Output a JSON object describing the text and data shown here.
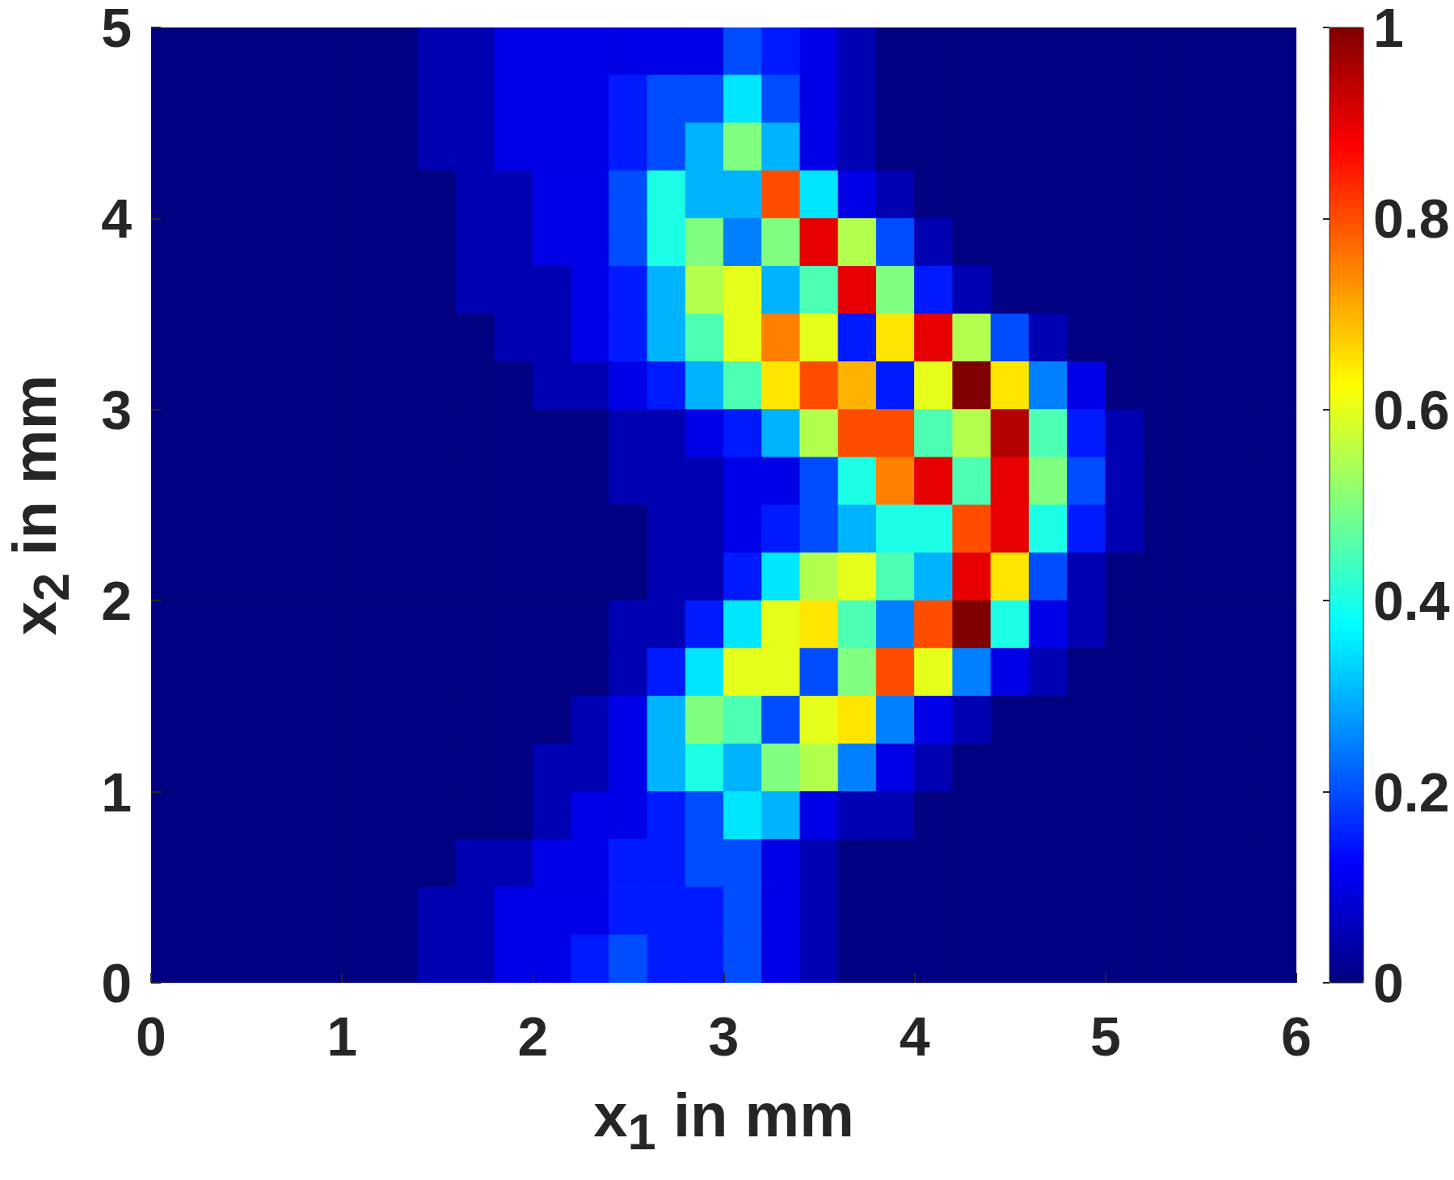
{
  "chart_data": {
    "type": "heatmap",
    "xlabel": "x$_{1}$ in mm",
    "ylabel": "x$_{2}$ in mm",
    "x": [
      0.1,
      0.3,
      0.5,
      0.7,
      0.9,
      1.1,
      1.3,
      1.5,
      1.7,
      1.9,
      2.1,
      2.3,
      2.5,
      2.7,
      2.9,
      3.1,
      3.3,
      3.5,
      3.7,
      3.9,
      4.1,
      4.3,
      4.5,
      4.7,
      4.9,
      5.1,
      5.3,
      5.5,
      5.7,
      5.9
    ],
    "y": [
      4.875,
      4.625,
      4.375,
      4.125,
      3.875,
      3.625,
      3.375,
      3.125,
      2.875,
      2.625,
      2.375,
      2.125,
      1.875,
      1.625,
      1.375,
      1.125,
      0.875,
      0.625,
      0.375,
      0.125
    ],
    "cells": [
      [
        0,
        0,
        0,
        0,
        0,
        0,
        0,
        0.05,
        0.05,
        0.1,
        0.1,
        0.1,
        0.1,
        0.1,
        0.1,
        0.2,
        0.15,
        0.1,
        0.05,
        0,
        0,
        0,
        0,
        0,
        0,
        0,
        0,
        0,
        0,
        0
      ],
      [
        0,
        0,
        0,
        0,
        0,
        0,
        0,
        0.05,
        0.05,
        0.1,
        0.1,
        0.1,
        0.15,
        0.2,
        0.2,
        0.35,
        0.2,
        0.1,
        0.05,
        0,
        0,
        0,
        0,
        0,
        0,
        0,
        0,
        0,
        0,
        0
      ],
      [
        0,
        0,
        0,
        0,
        0,
        0,
        0,
        0.05,
        0.05,
        0.1,
        0.1,
        0.1,
        0.15,
        0.2,
        0.3,
        0.5,
        0.3,
        0.1,
        0.05,
        0,
        0,
        0,
        0,
        0,
        0,
        0,
        0,
        0,
        0,
        0
      ],
      [
        0,
        0,
        0,
        0,
        0,
        0,
        0,
        0,
        0.05,
        0.05,
        0.1,
        0.1,
        0.2,
        0.4,
        0.3,
        0.3,
        0.8,
        0.35,
        0.1,
        0.05,
        0,
        0,
        0,
        0,
        0,
        0,
        0,
        0,
        0,
        0
      ],
      [
        0,
        0,
        0,
        0,
        0,
        0,
        0,
        0,
        0.05,
        0.05,
        0.1,
        0.1,
        0.2,
        0.4,
        0.5,
        0.25,
        0.5,
        0.9,
        0.55,
        0.2,
        0.05,
        0,
        0,
        0,
        0,
        0,
        0,
        0,
        0,
        0
      ],
      [
        0,
        0,
        0,
        0,
        0,
        0,
        0,
        0,
        0.05,
        0.05,
        0.05,
        0.1,
        0.15,
        0.3,
        0.55,
        0.6,
        0.3,
        0.45,
        0.9,
        0.5,
        0.15,
        0.05,
        0,
        0,
        0,
        0,
        0,
        0,
        0,
        0
      ],
      [
        0,
        0,
        0,
        0,
        0,
        0,
        0,
        0,
        0,
        0.05,
        0.05,
        0.1,
        0.15,
        0.3,
        0.45,
        0.6,
        0.75,
        0.6,
        0.15,
        0.65,
        0.9,
        0.55,
        0.2,
        0.05,
        0,
        0,
        0,
        0,
        0,
        0
      ],
      [
        0,
        0,
        0,
        0,
        0,
        0,
        0,
        0,
        0,
        0,
        0.05,
        0.05,
        0.1,
        0.15,
        0.3,
        0.45,
        0.65,
        0.8,
        0.7,
        0.15,
        0.6,
        1,
        0.65,
        0.25,
        0.1,
        0,
        0,
        0,
        0,
        0
      ],
      [
        0,
        0,
        0,
        0,
        0,
        0,
        0,
        0,
        0,
        0,
        0,
        0,
        0.05,
        0.05,
        0.1,
        0.15,
        0.3,
        0.55,
        0.8,
        0.8,
        0.45,
        0.55,
        0.95,
        0.45,
        0.15,
        0.05,
        0,
        0,
        0,
        0
      ],
      [
        0,
        0,
        0,
        0,
        0,
        0,
        0,
        0,
        0,
        0,
        0,
        0,
        0.05,
        0.05,
        0.05,
        0.1,
        0.1,
        0.2,
        0.4,
        0.75,
        0.9,
        0.45,
        0.9,
        0.5,
        0.2,
        0.05,
        0,
        0,
        0,
        0
      ],
      [
        0,
        0,
        0,
        0,
        0,
        0,
        0,
        0,
        0,
        0,
        0,
        0,
        0,
        0.05,
        0.05,
        0.1,
        0.15,
        0.2,
        0.3,
        0.4,
        0.4,
        0.8,
        0.9,
        0.4,
        0.15,
        0.05,
        0,
        0,
        0,
        0
      ],
      [
        0,
        0,
        0,
        0,
        0,
        0,
        0,
        0,
        0,
        0,
        0,
        0,
        0,
        0.05,
        0.05,
        0.15,
        0.35,
        0.55,
        0.6,
        0.45,
        0.3,
        0.9,
        0.65,
        0.2,
        0.05,
        0,
        0,
        0,
        0,
        0
      ],
      [
        0,
        0,
        0,
        0,
        0,
        0,
        0,
        0,
        0,
        0,
        0,
        0,
        0.05,
        0.05,
        0.15,
        0.35,
        0.6,
        0.65,
        0.45,
        0.25,
        0.8,
        1,
        0.4,
        0.1,
        0.05,
        0,
        0,
        0,
        0,
        0
      ],
      [
        0,
        0,
        0,
        0,
        0,
        0,
        0,
        0,
        0,
        0,
        0,
        0,
        0.05,
        0.15,
        0.35,
        0.6,
        0.6,
        0.2,
        0.5,
        0.8,
        0.6,
        0.25,
        0.1,
        0.05,
        0,
        0,
        0,
        0,
        0,
        0
      ],
      [
        0,
        0,
        0,
        0,
        0,
        0,
        0,
        0,
        0,
        0,
        0,
        0.05,
        0.1,
        0.3,
        0.5,
        0.45,
        0.2,
        0.6,
        0.65,
        0.25,
        0.1,
        0.05,
        0,
        0,
        0,
        0,
        0,
        0,
        0,
        0
      ],
      [
        0,
        0,
        0,
        0,
        0,
        0,
        0,
        0,
        0,
        0,
        0.05,
        0.05,
        0.1,
        0.3,
        0.4,
        0.3,
        0.5,
        0.55,
        0.25,
        0.1,
        0.05,
        0,
        0,
        0,
        0,
        0,
        0,
        0,
        0,
        0
      ],
      [
        0,
        0,
        0,
        0,
        0,
        0,
        0,
        0,
        0,
        0,
        0.05,
        0.1,
        0.1,
        0.15,
        0.2,
        0.35,
        0.3,
        0.1,
        0.05,
        0.05,
        0,
        0,
        0,
        0,
        0,
        0,
        0,
        0,
        0,
        0
      ],
      [
        0,
        0,
        0,
        0,
        0,
        0,
        0,
        0,
        0.05,
        0.05,
        0.1,
        0.1,
        0.15,
        0.15,
        0.2,
        0.2,
        0.1,
        0.05,
        0,
        0,
        0,
        0,
        0,
        0,
        0,
        0,
        0,
        0,
        0,
        0
      ],
      [
        0,
        0,
        0,
        0,
        0,
        0,
        0,
        0.05,
        0.05,
        0.1,
        0.1,
        0.1,
        0.15,
        0.15,
        0.15,
        0.2,
        0.1,
        0.05,
        0,
        0,
        0,
        0,
        0,
        0,
        0,
        0,
        0,
        0,
        0,
        0
      ],
      [
        0,
        0,
        0,
        0,
        0,
        0,
        0,
        0.05,
        0.05,
        0.1,
        0.1,
        0.15,
        0.2,
        0.15,
        0.15,
        0.2,
        0.1,
        0.05,
        0,
        0,
        0,
        0,
        0,
        0,
        0,
        0,
        0,
        0,
        0,
        0
      ]
    ],
    "xlim": [
      0,
      6
    ],
    "xticks": [
      0,
      1,
      2,
      3,
      4,
      5,
      6
    ],
    "ylim": [
      0,
      5
    ],
    "yticks": [
      0,
      1,
      2,
      3,
      4,
      5
    ],
    "clim": [
      0,
      1
    ],
    "cticks": [
      0,
      0.2,
      0.4,
      0.6,
      0.8,
      1
    ]
  }
}
